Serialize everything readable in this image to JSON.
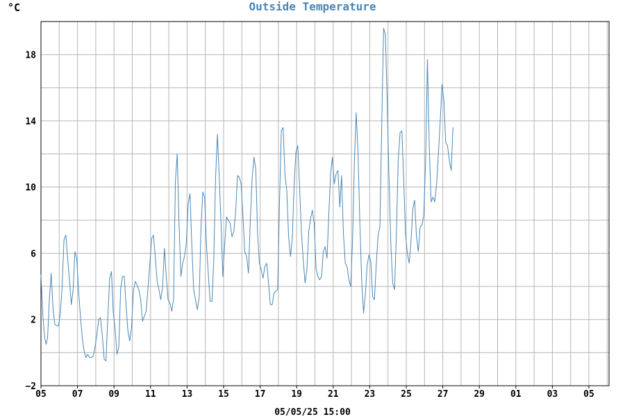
{
  "chart_data": {
    "type": "line",
    "title": "Outside Temperature",
    "unit_label": "°C",
    "footer_label": "05/05/25 15:00",
    "ylim": [
      -2,
      20
    ],
    "y_ticks": [
      -2,
      2,
      6,
      10,
      14,
      18
    ],
    "x_tick_labels": [
      "05",
      "07",
      "09",
      "11",
      "13",
      "15",
      "17",
      "19",
      "21",
      "23",
      "25",
      "27",
      "29",
      "01",
      "03",
      "05"
    ],
    "x_unit": "day index (0 = first 05 tick, 2 days per labeled tick)",
    "grid": true,
    "line_color": "#4a86b4",
    "grid_color": "#b4b4b4",
    "series": [
      {
        "values": [
          [
            0.0,
            4.7
          ],
          [
            0.1,
            2.3
          ],
          [
            0.2,
            0.9
          ],
          [
            0.28,
            0.5
          ],
          [
            0.36,
            0.9
          ],
          [
            0.46,
            3.2
          ],
          [
            0.56,
            4.8
          ],
          [
            0.66,
            2.6
          ],
          [
            0.76,
            1.7
          ],
          [
            0.96,
            1.6
          ],
          [
            1.06,
            2.4
          ],
          [
            1.16,
            4.0
          ],
          [
            1.26,
            6.8
          ],
          [
            1.36,
            7.1
          ],
          [
            1.46,
            5.7
          ],
          [
            1.56,
            4.4
          ],
          [
            1.66,
            2.9
          ],
          [
            1.76,
            3.8
          ],
          [
            1.86,
            6.1
          ],
          [
            1.96,
            5.7
          ],
          [
            2.06,
            3.7
          ],
          [
            2.16,
            2.2
          ],
          [
            2.26,
            0.9
          ],
          [
            2.36,
            0.1
          ],
          [
            2.46,
            -0.3
          ],
          [
            2.56,
            -0.1
          ],
          [
            2.66,
            -0.3
          ],
          [
            2.76,
            -0.3
          ],
          [
            2.86,
            -0.2
          ],
          [
            2.96,
            0.3
          ],
          [
            3.06,
            1.1
          ],
          [
            3.16,
            2.0
          ],
          [
            3.26,
            2.1
          ],
          [
            3.36,
            1.0
          ],
          [
            3.46,
            -0.4
          ],
          [
            3.56,
            -0.5
          ],
          [
            3.66,
            2.1
          ],
          [
            3.76,
            4.5
          ],
          [
            3.86,
            4.9
          ],
          [
            3.96,
            2.4
          ],
          [
            4.06,
            1.4
          ],
          [
            4.16,
            -0.1
          ],
          [
            4.26,
            0.3
          ],
          [
            4.36,
            3.8
          ],
          [
            4.46,
            4.6
          ],
          [
            4.56,
            4.6
          ],
          [
            4.66,
            2.8
          ],
          [
            4.76,
            1.3
          ],
          [
            4.86,
            0.7
          ],
          [
            4.96,
            1.5
          ],
          [
            5.06,
            3.7
          ],
          [
            5.16,
            4.3
          ],
          [
            5.26,
            4.1
          ],
          [
            5.36,
            3.8
          ],
          [
            5.46,
            3.2
          ],
          [
            5.56,
            1.9
          ],
          [
            5.66,
            2.2
          ],
          [
            5.76,
            2.5
          ],
          [
            5.86,
            3.9
          ],
          [
            5.96,
            5.3
          ],
          [
            6.06,
            6.9
          ],
          [
            6.16,
            7.1
          ],
          [
            6.26,
            5.8
          ],
          [
            6.36,
            4.3
          ],
          [
            6.46,
            3.8
          ],
          [
            6.56,
            3.2
          ],
          [
            6.66,
            4.0
          ],
          [
            6.76,
            6.3
          ],
          [
            6.86,
            4.6
          ],
          [
            6.96,
            3.2
          ],
          [
            7.06,
            3.0
          ],
          [
            7.16,
            2.5
          ],
          [
            7.26,
            3.2
          ],
          [
            7.36,
            10.4
          ],
          [
            7.46,
            12.0
          ],
          [
            7.56,
            7.8
          ],
          [
            7.66,
            4.6
          ],
          [
            7.76,
            5.4
          ],
          [
            7.86,
            5.8
          ],
          [
            7.96,
            6.6
          ],
          [
            8.06,
            9.0
          ],
          [
            8.16,
            9.6
          ],
          [
            8.26,
            6.5
          ],
          [
            8.36,
            3.8
          ],
          [
            8.46,
            3.2
          ],
          [
            8.56,
            2.6
          ],
          [
            8.66,
            3.3
          ],
          [
            8.76,
            7.5
          ],
          [
            8.86,
            9.7
          ],
          [
            8.96,
            9.4
          ],
          [
            9.06,
            6.5
          ],
          [
            9.16,
            4.8
          ],
          [
            9.26,
            3.1
          ],
          [
            9.36,
            3.1
          ],
          [
            9.46,
            5.5
          ],
          [
            9.56,
            10.5
          ],
          [
            9.66,
            13.2
          ],
          [
            9.76,
            10.6
          ],
          [
            9.86,
            7.8
          ],
          [
            9.96,
            4.6
          ],
          [
            10.06,
            6.6
          ],
          [
            10.16,
            8.2
          ],
          [
            10.26,
            8.0
          ],
          [
            10.36,
            7.8
          ],
          [
            10.46,
            7.0
          ],
          [
            10.56,
            7.3
          ],
          [
            10.66,
            8.5
          ],
          [
            10.76,
            10.7
          ],
          [
            10.86,
            10.6
          ],
          [
            10.96,
            10.2
          ],
          [
            11.06,
            8.2
          ],
          [
            11.16,
            6.1
          ],
          [
            11.26,
            5.8
          ],
          [
            11.36,
            4.8
          ],
          [
            11.46,
            7.9
          ],
          [
            11.56,
            10.5
          ],
          [
            11.66,
            11.8
          ],
          [
            11.76,
            11.1
          ],
          [
            11.86,
            7.2
          ],
          [
            11.96,
            5.4
          ],
          [
            12.06,
            5.0
          ],
          [
            12.16,
            4.5
          ],
          [
            12.26,
            5.2
          ],
          [
            12.36,
            5.4
          ],
          [
            12.46,
            4.2
          ],
          [
            12.56,
            2.9
          ],
          [
            12.66,
            2.9
          ],
          [
            12.76,
            3.6
          ],
          [
            12.86,
            3.7
          ],
          [
            12.96,
            3.8
          ],
          [
            13.06,
            9.1
          ],
          [
            13.16,
            13.4
          ],
          [
            13.26,
            13.6
          ],
          [
            13.36,
            10.7
          ],
          [
            13.46,
            9.8
          ],
          [
            13.56,
            7.0
          ],
          [
            13.66,
            5.8
          ],
          [
            13.76,
            6.9
          ],
          [
            13.86,
            10.1
          ],
          [
            13.96,
            12.1
          ],
          [
            14.06,
            12.5
          ],
          [
            14.16,
            10.0
          ],
          [
            14.26,
            7.3
          ],
          [
            14.36,
            5.6
          ],
          [
            14.46,
            4.2
          ],
          [
            14.56,
            5.0
          ],
          [
            14.66,
            7.3
          ],
          [
            14.76,
            8.1
          ],
          [
            14.86,
            8.6
          ],
          [
            14.96,
            7.8
          ],
          [
            15.06,
            5.1
          ],
          [
            15.16,
            4.6
          ],
          [
            15.26,
            4.4
          ],
          [
            15.36,
            4.6
          ],
          [
            15.46,
            6.1
          ],
          [
            15.56,
            6.4
          ],
          [
            15.66,
            5.7
          ],
          [
            15.76,
            8.4
          ],
          [
            15.86,
            10.8
          ],
          [
            15.96,
            11.8
          ],
          [
            16.06,
            10.2
          ],
          [
            16.16,
            10.8
          ],
          [
            16.26,
            11.0
          ],
          [
            16.36,
            8.8
          ],
          [
            16.46,
            10.7
          ],
          [
            16.56,
            7.2
          ],
          [
            16.66,
            5.4
          ],
          [
            16.76,
            5.2
          ],
          [
            16.86,
            4.4
          ],
          [
            16.96,
            4.0
          ],
          [
            17.06,
            6.8
          ],
          [
            17.16,
            11.5
          ],
          [
            17.26,
            14.5
          ],
          [
            17.36,
            12.0
          ],
          [
            17.46,
            7.8
          ],
          [
            17.56,
            4.4
          ],
          [
            17.66,
            2.4
          ],
          [
            17.76,
            3.5
          ],
          [
            17.86,
            5.3
          ],
          [
            17.96,
            5.9
          ],
          [
            18.06,
            5.5
          ],
          [
            18.16,
            3.4
          ],
          [
            18.26,
            3.2
          ],
          [
            18.36,
            5.4
          ],
          [
            18.46,
            7.1
          ],
          [
            18.56,
            7.6
          ],
          [
            18.66,
            14.0
          ],
          [
            18.76,
            19.6
          ],
          [
            18.86,
            19.2
          ],
          [
            18.96,
            15.1
          ],
          [
            19.06,
            10.3
          ],
          [
            19.16,
            6.5
          ],
          [
            19.26,
            4.2
          ],
          [
            19.36,
            3.8
          ],
          [
            19.46,
            7.2
          ],
          [
            19.56,
            11.6
          ],
          [
            19.66,
            13.3
          ],
          [
            19.76,
            13.4
          ],
          [
            19.86,
            10.5
          ],
          [
            19.96,
            7.2
          ],
          [
            20.06,
            6.0
          ],
          [
            20.16,
            5.4
          ],
          [
            20.26,
            6.7
          ],
          [
            20.36,
            8.7
          ],
          [
            20.46,
            9.2
          ],
          [
            20.56,
            7.0
          ],
          [
            20.66,
            6.1
          ],
          [
            20.76,
            7.6
          ],
          [
            20.86,
            7.7
          ],
          [
            20.96,
            8.3
          ],
          [
            21.06,
            11.6
          ],
          [
            21.16,
            17.7
          ],
          [
            21.26,
            12.5
          ],
          [
            21.36,
            9.1
          ],
          [
            21.46,
            9.4
          ],
          [
            21.56,
            9.1
          ],
          [
            21.66,
            10.2
          ],
          [
            21.76,
            12.0
          ],
          [
            21.86,
            14.0
          ],
          [
            21.96,
            16.2
          ],
          [
            22.06,
            15.2
          ],
          [
            22.16,
            12.7
          ],
          [
            22.26,
            12.5
          ],
          [
            22.36,
            11.6
          ],
          [
            22.46,
            11.0
          ],
          [
            22.56,
            13.6
          ]
        ]
      }
    ]
  }
}
